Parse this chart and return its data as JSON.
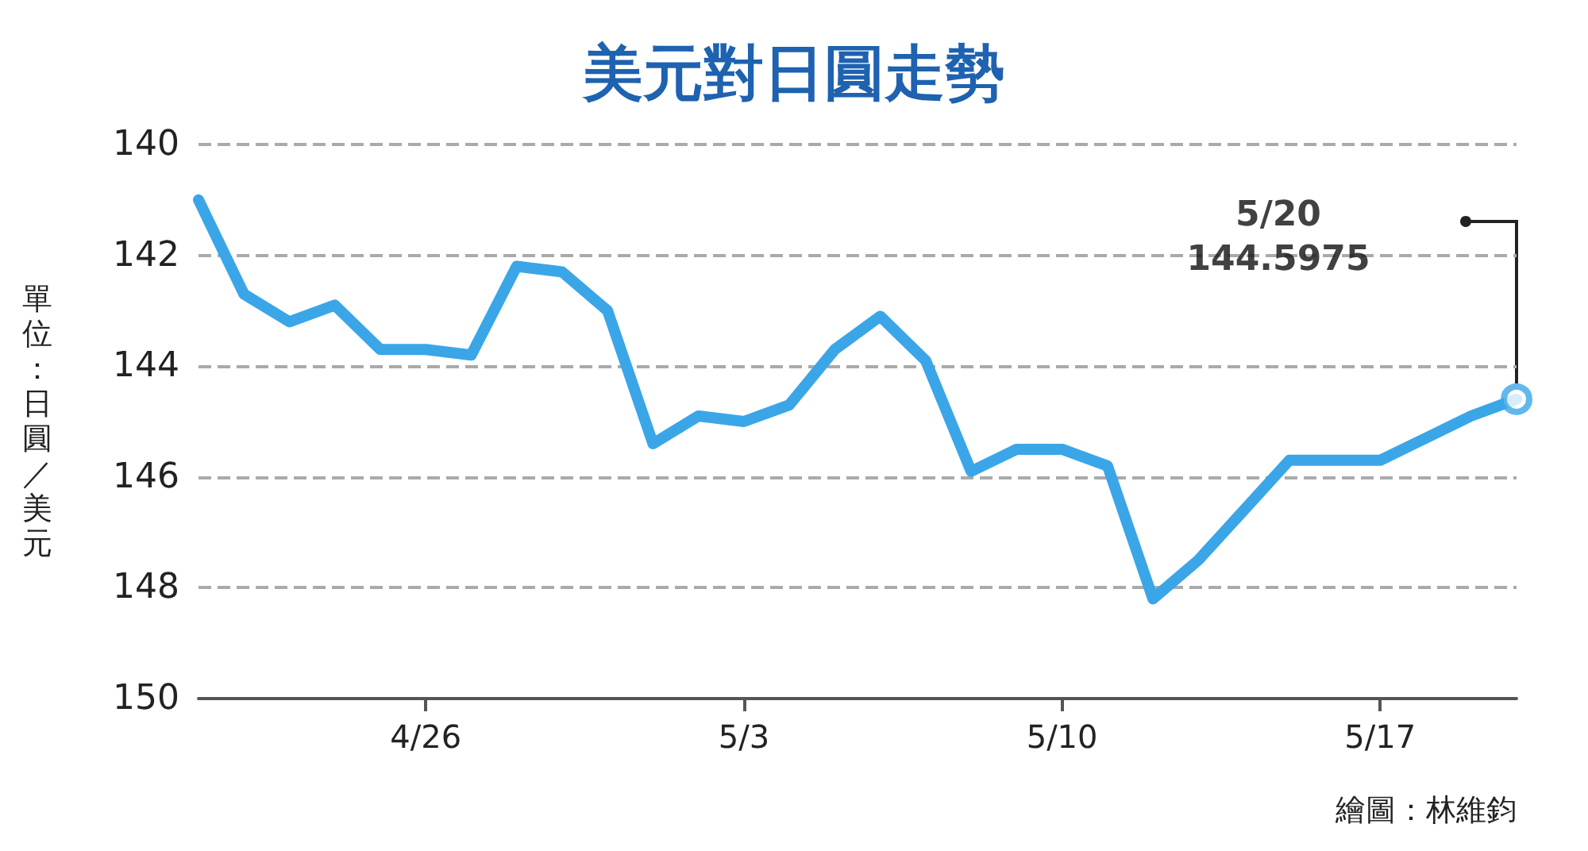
{
  "chart_data": {
    "type": "line",
    "title": "美元對日圓走勢",
    "ylabel": "單位：日圓／美元",
    "x": [
      "--04-21",
      "--04-22",
      "--04-23",
      "--04-24",
      "--04-25",
      "--04-26",
      "--04-27",
      "--04-28",
      "--04-29",
      "--04-30",
      "--05-01",
      "--05-02",
      "--05-03",
      "--05-04",
      "--05-05",
      "--05-06",
      "--05-07",
      "--05-08",
      "--05-09",
      "--05-10",
      "--05-11",
      "--05-12",
      "--05-13",
      "--05-14",
      "--05-15",
      "--05-16",
      "--05-17",
      "--05-18",
      "--05-19",
      "--05-20"
    ],
    "series": [
      {
        "color": "#3aa6e8",
        "values": [
          141.0,
          142.7,
          143.2,
          142.9,
          143.7,
          143.7,
          143.8,
          142.2,
          142.3,
          143.0,
          145.4,
          144.9,
          145.0,
          144.7,
          143.7,
          143.1,
          143.9,
          145.9,
          145.5,
          145.5,
          145.8,
          148.2,
          147.5,
          146.6,
          145.7,
          145.7,
          145.7,
          145.3,
          144.9,
          144.5975
        ]
      }
    ],
    "xlim": [
      "--04-21",
      "--05-20"
    ],
    "xticks": [
      {
        "value": "--04-26",
        "label": "4/26"
      },
      {
        "value": "--05-03",
        "label": "5/3"
      },
      {
        "value": "--05-10",
        "label": "5/10"
      },
      {
        "value": "--05-17",
        "label": "5/17"
      }
    ],
    "ylim": [
      150,
      140
    ],
    "yticks": [
      140,
      142,
      144,
      146,
      148,
      150
    ],
    "grid": "y",
    "marker": "none",
    "line_style": "solid",
    "annotations": [
      "5/20\n144.5975",
      "繪圖：林維鈞"
    ]
  }
}
